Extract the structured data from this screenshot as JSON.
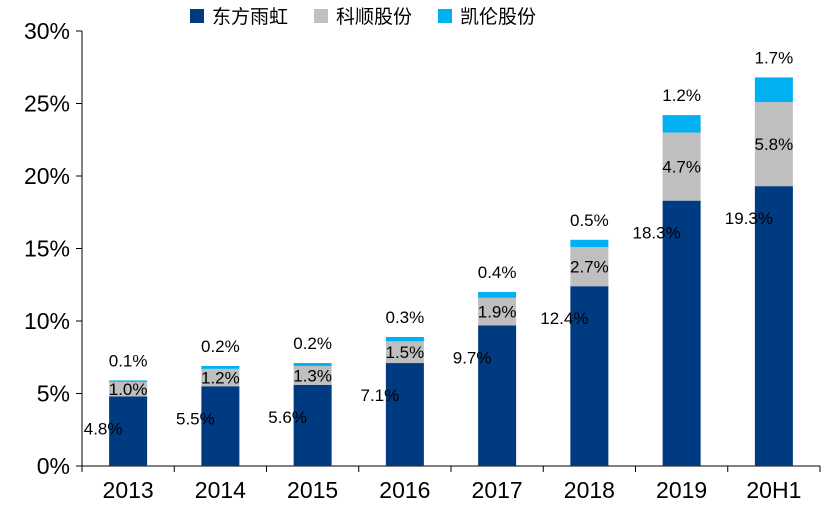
{
  "chart_data": {
    "type": "bar",
    "stacked": true,
    "categories": [
      "2013",
      "2014",
      "2015",
      "2016",
      "2017",
      "2018",
      "2019",
      "20H1"
    ],
    "series": [
      {
        "name": "东方雨虹",
        "color": "#003A80",
        "values": [
          4.8,
          5.5,
          5.6,
          7.1,
          9.7,
          12.4,
          18.3,
          19.3
        ],
        "labels": [
          "4.8%",
          "5.5%",
          "5.6%",
          "7.1%",
          "9.7%",
          "12.4%",
          "18.3%",
          "19.3%"
        ]
      },
      {
        "name": "科顺股份",
        "color": "#BFBFBF",
        "values": [
          1.0,
          1.2,
          1.3,
          1.5,
          1.9,
          2.7,
          4.7,
          5.8
        ],
        "labels": [
          "1.0%",
          "1.2%",
          "1.3%",
          "1.5%",
          "1.9%",
          "2.7%",
          "4.7%",
          "5.8%"
        ]
      },
      {
        "name": "凯伦股份",
        "color": "#00B0F0",
        "values": [
          0.1,
          0.2,
          0.2,
          0.3,
          0.4,
          0.5,
          1.2,
          1.7
        ],
        "labels": [
          "0.1%",
          "0.2%",
          "0.2%",
          "0.3%",
          "0.4%",
          "0.5%",
          "1.2%",
          "1.7%"
        ]
      }
    ],
    "ylim": [
      0,
      30
    ],
    "yticks": [
      0,
      5,
      10,
      15,
      20,
      25,
      30
    ],
    "ytick_labels": [
      "0%",
      "5%",
      "10%",
      "15%",
      "20%",
      "25%",
      "30%"
    ],
    "legend_position": "top",
    "grid": false
  }
}
